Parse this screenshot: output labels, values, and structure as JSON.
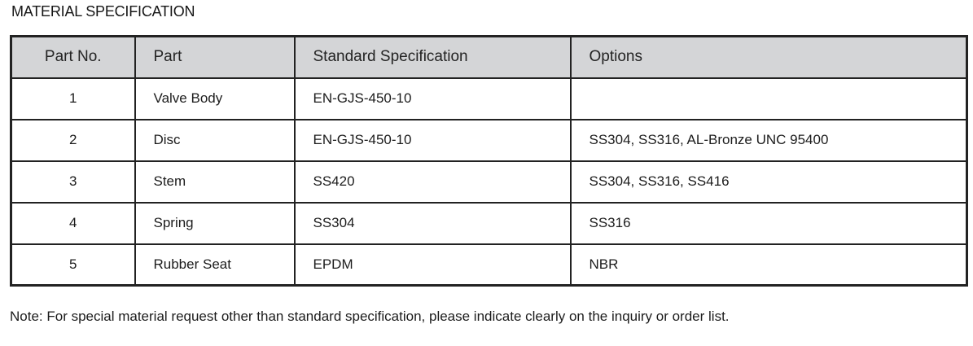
{
  "page": {
    "title": "MATERIAL SPECIFICATION",
    "note": "Note: For special material request other than standard specification, please indicate clearly on the inquiry or order list."
  },
  "table": {
    "columns": [
      "Part No.",
      "Part",
      "Standard Specification",
      "Options"
    ],
    "rows": [
      {
        "part_no": "1",
        "part": "Valve Body",
        "standard": "EN-GJS-450-10",
        "options": ""
      },
      {
        "part_no": "2",
        "part": "Disc",
        "standard": "EN-GJS-450-10",
        "options": "SS304, SS316, AL-Bronze UNC 95400"
      },
      {
        "part_no": "3",
        "part": "Stem",
        "standard": "SS420",
        "options": "SS304, SS316, SS416"
      },
      {
        "part_no": "4",
        "part": "Spring",
        "standard": "SS304",
        "options": "SS316"
      },
      {
        "part_no": "5",
        "part": "Rubber Seat",
        "standard": "EPDM",
        "options": "NBR"
      }
    ],
    "colors": {
      "header_bg": "#d4d5d7",
      "border": "#222222",
      "text": "#1c1c1c"
    }
  }
}
